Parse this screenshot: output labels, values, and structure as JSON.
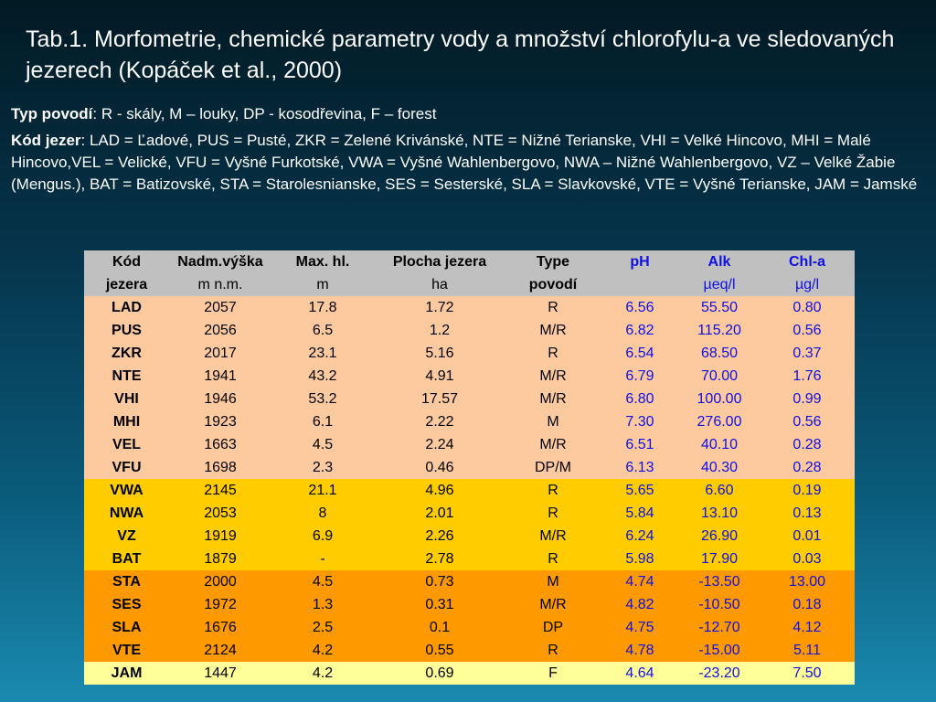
{
  "title": "Tab.1. Morfometrie, chemické parametry vody a množství chlorofylu-a ve sledovaných jezerech (Kopáček et al., 2000)",
  "legend": {
    "typ_label": "Typ povodí",
    "typ_text": ": R - skály, M – louky, DP - kosodřevina,  F – forest",
    "kod_label": "Kód jezer",
    "kod_text": ": LAD = Ľadové, PUS = Pusté, ZKR = Zelené Kriváns­ké, NTE = Nižné Terianske, VHI = Velké Hincovo, MHI = Malé Hincovo,VEL = Velické, VFU = Vyšné Furkotské, VWA = Vyšné Wahlenbergovo, NWA – Nižné Wahlenbergovo, VZ – Velké Žabie (Mengus.), BAT = Batizovské, STA = Starolesnianske, SES = Sesterské, SLA = Slavkovské, VTE = Vyšné Terianske, JAM = Jamské"
  },
  "table": {
    "headers": [
      "Kód",
      "Nadm.výška",
      "Max. hl.",
      "Plocha jezera",
      "Type",
      "pH",
      "Alk",
      "Chl-a"
    ],
    "units": [
      "jezera",
      "m n.m.",
      "m",
      "ha",
      "povodí",
      "",
      "µeq/l",
      "µg/l"
    ],
    "rows": [
      {
        "code": "LAD",
        "alt": "2057",
        "depth": "17.8",
        "area": "1.72",
        "type": "R",
        "ph": "6.56",
        "alk": "55.50",
        "chla": "0.80",
        "group": "g1"
      },
      {
        "code": "PUS",
        "alt": "2056",
        "depth": "6.5",
        "area": "1.2",
        "type": "M/R",
        "ph": "6.82",
        "alk": "115.20",
        "chla": "0.56",
        "group": "g1"
      },
      {
        "code": "ZKR",
        "alt": "2017",
        "depth": "23.1",
        "area": "5.16",
        "type": "R",
        "ph": "6.54",
        "alk": "68.50",
        "chla": "0.37",
        "group": "g1"
      },
      {
        "code": "NTE",
        "alt": "1941",
        "depth": "43.2",
        "area": "4.91",
        "type": "M/R",
        "ph": "6.79",
        "alk": "70.00",
        "chla": "1.76",
        "group": "g1"
      },
      {
        "code": "VHI",
        "alt": "1946",
        "depth": "53.2",
        "area": "17.57",
        "type": "M/R",
        "ph": "6.80",
        "alk": "100.00",
        "chla": "0.99",
        "group": "g1"
      },
      {
        "code": "MHI",
        "alt": "1923",
        "depth": "6.1",
        "area": "2.22",
        "type": "M",
        "ph": "7.30",
        "alk": "276.00",
        "chla": "0.56",
        "group": "g1"
      },
      {
        "code": "VEL",
        "alt": "1663",
        "depth": "4.5",
        "area": "2.24",
        "type": "M/R",
        "ph": "6.51",
        "alk": "40.10",
        "chla": "0.28",
        "group": "g1"
      },
      {
        "code": "VFU",
        "alt": "1698",
        "depth": "2.3",
        "area": "0.46",
        "type": "DP/M",
        "ph": "6.13",
        "alk": "40.30",
        "chla": "0.28",
        "group": "g1"
      },
      {
        "code": "VWA",
        "alt": "2145",
        "depth": "21.1",
        "area": "4.96",
        "type": "R",
        "ph": "5.65",
        "alk": "6.60",
        "chla": "0.19",
        "group": "g2"
      },
      {
        "code": "NWA",
        "alt": "2053",
        "depth": "8",
        "area": "2.01",
        "type": "R",
        "ph": "5.84",
        "alk": "13.10",
        "chla": "0.13",
        "group": "g2"
      },
      {
        "code": "VZ",
        "alt": "1919",
        "depth": "6.9",
        "area": "2.26",
        "type": "M/R",
        "ph": "6.24",
        "alk": "26.90",
        "chla": "0.01",
        "group": "g2"
      },
      {
        "code": "BAT",
        "alt": "1879",
        "depth": "-",
        "area": "2.78",
        "type": "R",
        "ph": "5.98",
        "alk": "17.90",
        "chla": "0.03",
        "group": "g2"
      },
      {
        "code": "STA",
        "alt": "2000",
        "depth": "4.5",
        "area": "0.73",
        "type": "M",
        "ph": "4.74",
        "alk": "-13.50",
        "chla": "13.00",
        "group": "g3"
      },
      {
        "code": "SES",
        "alt": "1972",
        "depth": "1.3",
        "area": "0.31",
        "type": "M/R",
        "ph": "4.82",
        "alk": "-10.50",
        "chla": "0.18",
        "group": "g3"
      },
      {
        "code": "SLA",
        "alt": "1676",
        "depth": "2.5",
        "area": "0.1",
        "type": "DP",
        "ph": "4.75",
        "alk": "-12.70",
        "chla": "4.12",
        "group": "g3"
      },
      {
        "code": "VTE",
        "alt": "2124",
        "depth": "4.2",
        "area": "0.55",
        "type": "R",
        "ph": "4.78",
        "alk": "-15.00",
        "chla": "5.11",
        "group": "g3"
      },
      {
        "code": "JAM",
        "alt": "1447",
        "depth": "4.2",
        "area": "0.69",
        "type": "F",
        "ph": "4.64",
        "alk": "-23.20",
        "chla": "7.50",
        "group": "g4"
      }
    ]
  },
  "colors": {
    "group_1": "#fdc99e",
    "group_2": "#ffcc00",
    "group_3": "#ff9900",
    "group_4": "#ffff99",
    "header": "#c0c0c0",
    "chem_text": "#1010e0"
  }
}
